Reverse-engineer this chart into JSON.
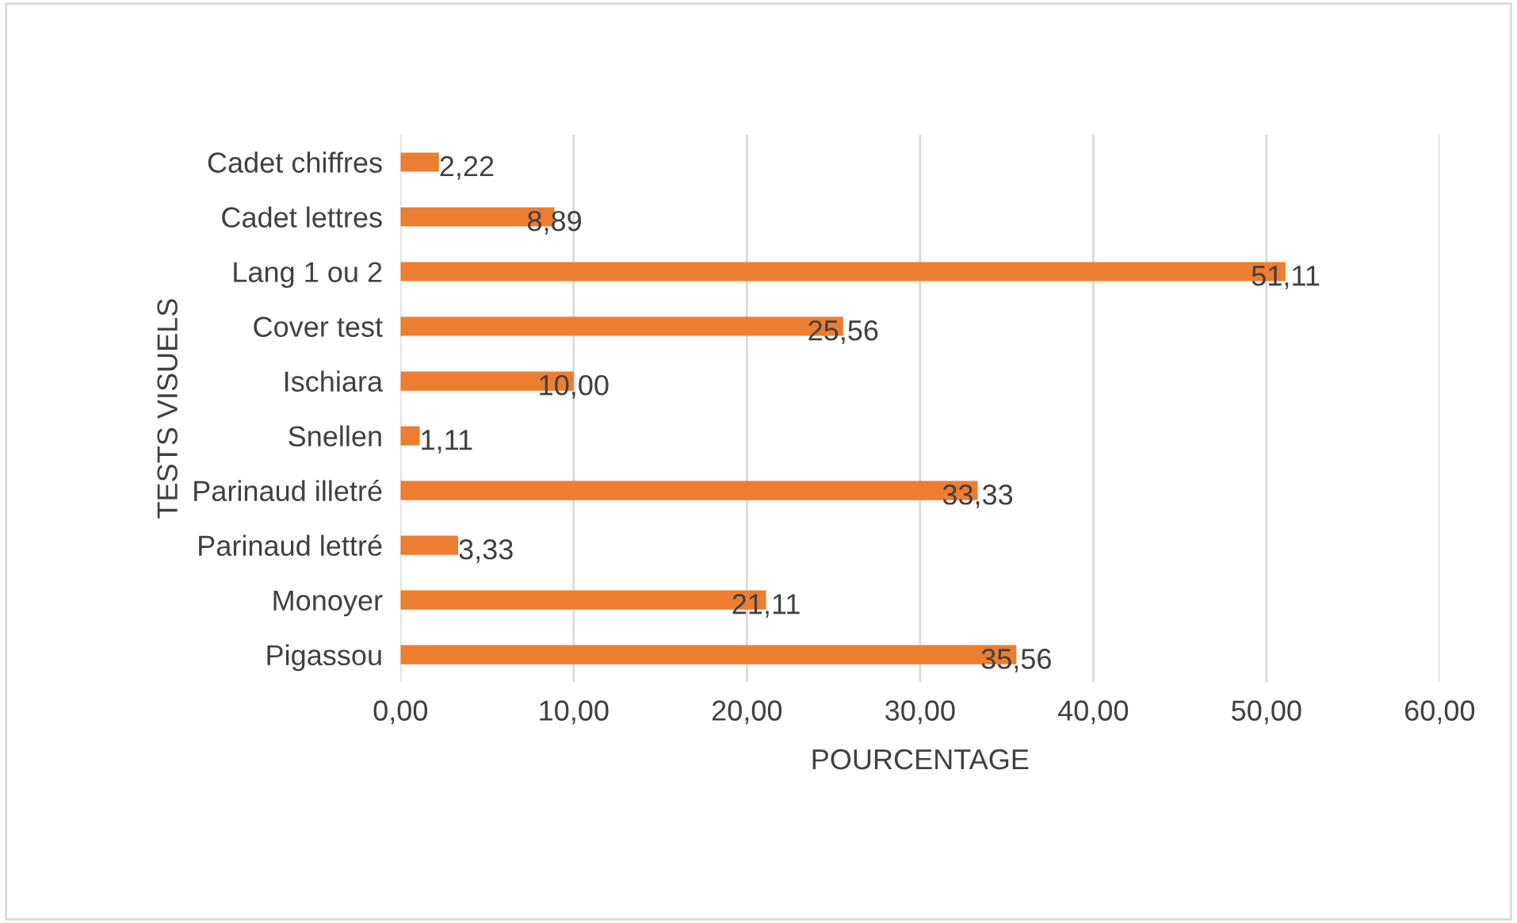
{
  "chart_data": {
    "type": "bar",
    "orientation": "horizontal",
    "xlabel": "POURCENTAGE",
    "ylabel": "TESTS VISUELS",
    "categories": [
      "Cadet chiffres",
      "Cadet lettres",
      "Lang 1 ou 2",
      "Cover test",
      "Ischiara",
      "Snellen",
      "Parinaud illetré",
      "Parinaud lettré",
      "Monoyer",
      "Pigassou"
    ],
    "values": [
      2.22,
      8.89,
      51.11,
      25.56,
      10.0,
      1.11,
      33.33,
      3.33,
      21.11,
      35.56
    ],
    "value_labels": [
      "2,22",
      "8,89",
      "51,11",
      "25,56",
      "10,00",
      "1,11",
      "33,33",
      "3,33",
      "21,11",
      "35,56"
    ],
    "color": "#ed7d31",
    "xlim": [
      0,
      60
    ],
    "xticks": [
      {
        "value": 0,
        "label": "0,00"
      },
      {
        "value": 10,
        "label": "10,00"
      },
      {
        "value": 20,
        "label": "20,00"
      },
      {
        "value": 30,
        "label": "30,00"
      },
      {
        "value": 40,
        "label": "40,00"
      },
      {
        "value": 50,
        "label": "50,00"
      },
      {
        "value": 60,
        "label": "60,00"
      }
    ],
    "grid": "x",
    "legend": false
  }
}
